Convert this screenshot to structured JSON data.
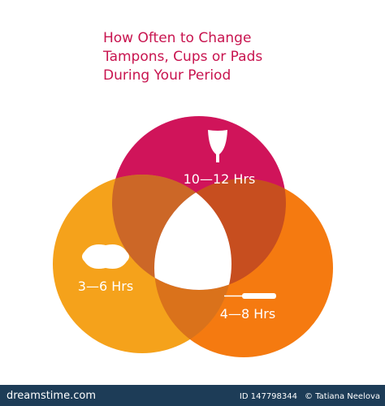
{
  "title": {
    "lines": [
      "How Often to Change",
      "Tampons, Cups or Pads",
      "During Your Period"
    ]
  },
  "circles": [
    {
      "label": "10—12 Hrs"
    },
    {
      "label": "3—6 Hrs"
    },
    {
      "label": "4—8 Hrs"
    }
  ],
  "footer": {
    "brand": "dreamstime.com",
    "id": "ID 147798344",
    "author": "© Tatiana Neelova"
  }
}
